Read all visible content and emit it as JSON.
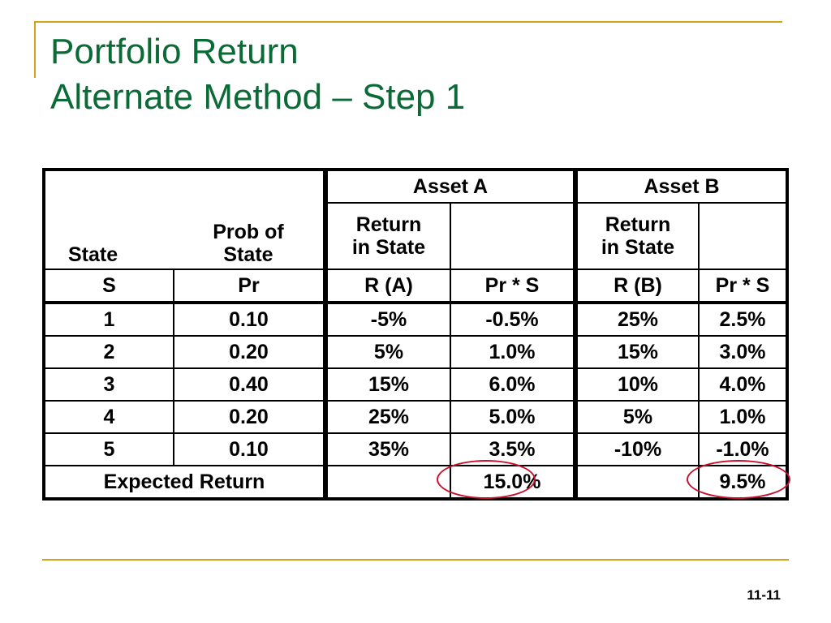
{
  "slide": {
    "title_line1": "Portfolio Return",
    "title_line2": "Alternate Method – Step 1",
    "page_number": "11-11"
  },
  "table": {
    "asset_a_header": "Asset A",
    "asset_b_header": "Asset B",
    "col_state_label": "State",
    "col_prob_label_1": "Prob of",
    "col_prob_label_2": "State",
    "col_return_a_label_1": "Return",
    "col_return_a_label_2": "in State",
    "col_return_b_label_1": "Return",
    "col_return_b_label_2": "in State",
    "symbols": [
      "S",
      "Pr",
      "R (A)",
      "Pr * S",
      "R (B)",
      "Pr * S"
    ],
    "rows": [
      {
        "state": "1",
        "prob": "0.10",
        "ra": "-5%",
        "pra": "-0.5%",
        "rb": "25%",
        "prb": "2.5%"
      },
      {
        "state": "2",
        "prob": "0.20",
        "ra": "5%",
        "pra": "1.0%",
        "rb": "15%",
        "prb": "3.0%"
      },
      {
        "state": "3",
        "prob": "0.40",
        "ra": "15%",
        "pra": "6.0%",
        "rb": "10%",
        "prb": "4.0%"
      },
      {
        "state": "4",
        "prob": "0.20",
        "ra": "25%",
        "pra": "5.0%",
        "rb": "5%",
        "prb": "1.0%"
      },
      {
        "state": "5",
        "prob": "0.10",
        "ra": "35%",
        "pra": "3.5%",
        "rb": "-10%",
        "prb": "-1.0%"
      }
    ],
    "expected_label": "Expected Return",
    "expected_a": "15.0%",
    "expected_b": "9.5%"
  },
  "colors": {
    "title": "#0b6b36",
    "accent": "#d6a21e",
    "highlight_circle": "#c8102e"
  }
}
